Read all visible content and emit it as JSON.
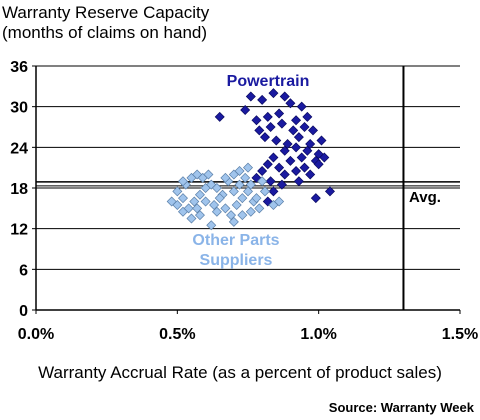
{
  "chart_data": {
    "type": "scatter",
    "title": "Warranty Reserve Capacity",
    "subtitle": "(months of claims on hand)",
    "xlabel": "Warranty Accrual Rate (as a percent of product sales)",
    "ylabel": "",
    "xlim": [
      0.0,
      1.5
    ],
    "ylim": [
      0,
      36
    ],
    "x_ticks": [
      0.0,
      0.5,
      1.0,
      1.5
    ],
    "x_tick_labels": [
      "0.0%",
      "0.5%",
      "1.0%",
      "1.5%"
    ],
    "y_ticks": [
      0,
      6,
      12,
      18,
      24,
      30,
      36
    ],
    "y_tick_labels": [
      "0",
      "6",
      "12",
      "18",
      "24",
      "30",
      "36"
    ],
    "grid": "horizontal",
    "reference_lines": {
      "average_y": 18.6,
      "average_label": "Avg.",
      "vertical_x": 1.3
    },
    "series": [
      {
        "name": "Powertrain",
        "color": "#1a1aa0",
        "points": [
          [
            0.65,
            28.5
          ],
          [
            0.76,
            31.5
          ],
          [
            0.8,
            31.0
          ],
          [
            0.84,
            32.0
          ],
          [
            0.88,
            31.5
          ],
          [
            0.9,
            30.5
          ],
          [
            0.94,
            30.0
          ],
          [
            0.74,
            29.5
          ],
          [
            0.78,
            28.0
          ],
          [
            0.82,
            28.5
          ],
          [
            0.86,
            29.0
          ],
          [
            0.92,
            28.0
          ],
          [
            0.96,
            28.5
          ],
          [
            0.79,
            26.5
          ],
          [
            0.83,
            27.0
          ],
          [
            0.87,
            27.5
          ],
          [
            0.91,
            26.5
          ],
          [
            0.95,
            27.0
          ],
          [
            0.98,
            26.5
          ],
          [
            0.81,
            25.5
          ],
          [
            0.85,
            25.0
          ],
          [
            0.89,
            24.5
          ],
          [
            0.93,
            25.5
          ],
          [
            0.97,
            24.5
          ],
          [
            1.01,
            25.0
          ],
          [
            0.88,
            23.5
          ],
          [
            0.92,
            24.0
          ],
          [
            0.96,
            23.5
          ],
          [
            1.0,
            23.0
          ],
          [
            0.84,
            22.5
          ],
          [
            0.9,
            22.0
          ],
          [
            0.94,
            22.5
          ],
          [
            0.99,
            22.0
          ],
          [
            1.02,
            22.5
          ],
          [
            0.82,
            21.5
          ],
          [
            0.86,
            21.0
          ],
          [
            0.95,
            21.0
          ],
          [
            1.0,
            21.5
          ],
          [
            0.8,
            20.5
          ],
          [
            0.88,
            20.0
          ],
          [
            0.92,
            20.5
          ],
          [
            0.97,
            20.0
          ],
          [
            0.78,
            19.5
          ],
          [
            0.83,
            19.0
          ],
          [
            0.87,
            18.5
          ],
          [
            0.93,
            19.0
          ],
          [
            1.04,
            17.5
          ],
          [
            0.99,
            16.5
          ],
          [
            0.82,
            16.0
          ],
          [
            0.84,
            17.5
          ]
        ]
      },
      {
        "name": "Other Parts Suppliers",
        "color": "#a0c4ec",
        "points": [
          [
            0.5,
            17.5
          ],
          [
            0.52,
            16.5
          ],
          [
            0.53,
            18.5
          ],
          [
            0.55,
            19.5
          ],
          [
            0.57,
            20.0
          ],
          [
            0.59,
            19.5
          ],
          [
            0.61,
            20.0
          ],
          [
            0.5,
            15.5
          ],
          [
            0.52,
            14.5
          ],
          [
            0.54,
            15.0
          ],
          [
            0.56,
            16.0
          ],
          [
            0.58,
            17.0
          ],
          [
            0.6,
            18.0
          ],
          [
            0.62,
            18.5
          ],
          [
            0.64,
            18.0
          ],
          [
            0.66,
            17.0
          ],
          [
            0.68,
            19.0
          ],
          [
            0.7,
            20.0
          ],
          [
            0.72,
            20.5
          ],
          [
            0.74,
            19.5
          ],
          [
            0.76,
            18.5
          ],
          [
            0.55,
            13.5
          ],
          [
            0.57,
            15.0
          ],
          [
            0.6,
            16.0
          ],
          [
            0.63,
            15.5
          ],
          [
            0.65,
            16.5
          ],
          [
            0.67,
            15.0
          ],
          [
            0.69,
            14.0
          ],
          [
            0.71,
            15.5
          ],
          [
            0.73,
            16.5
          ],
          [
            0.75,
            17.5
          ],
          [
            0.77,
            16.0
          ],
          [
            0.79,
            15.0
          ],
          [
            0.62,
            12.5
          ],
          [
            0.7,
            13.0
          ],
          [
            0.73,
            14.0
          ],
          [
            0.78,
            16.5
          ],
          [
            0.81,
            17.5
          ],
          [
            0.84,
            15.5
          ],
          [
            0.86,
            16.0
          ],
          [
            0.76,
            14.5
          ],
          [
            0.7,
            17.5
          ],
          [
            0.67,
            19.5
          ],
          [
            0.75,
            21.0
          ],
          [
            0.8,
            19.0
          ],
          [
            0.58,
            14.0
          ],
          [
            0.64,
            14.5
          ],
          [
            0.72,
            18.5
          ],
          [
            0.52,
            19.0
          ],
          [
            0.48,
            16.0
          ]
        ]
      }
    ],
    "annotations": [
      {
        "text": "Powertrain",
        "color": "#1a1aa0"
      },
      {
        "text": "Other Parts",
        "color": "#8ab4e8"
      },
      {
        "text": "Suppliers",
        "color": "#8ab4e8"
      }
    ]
  },
  "source": "Source: Warranty Week"
}
